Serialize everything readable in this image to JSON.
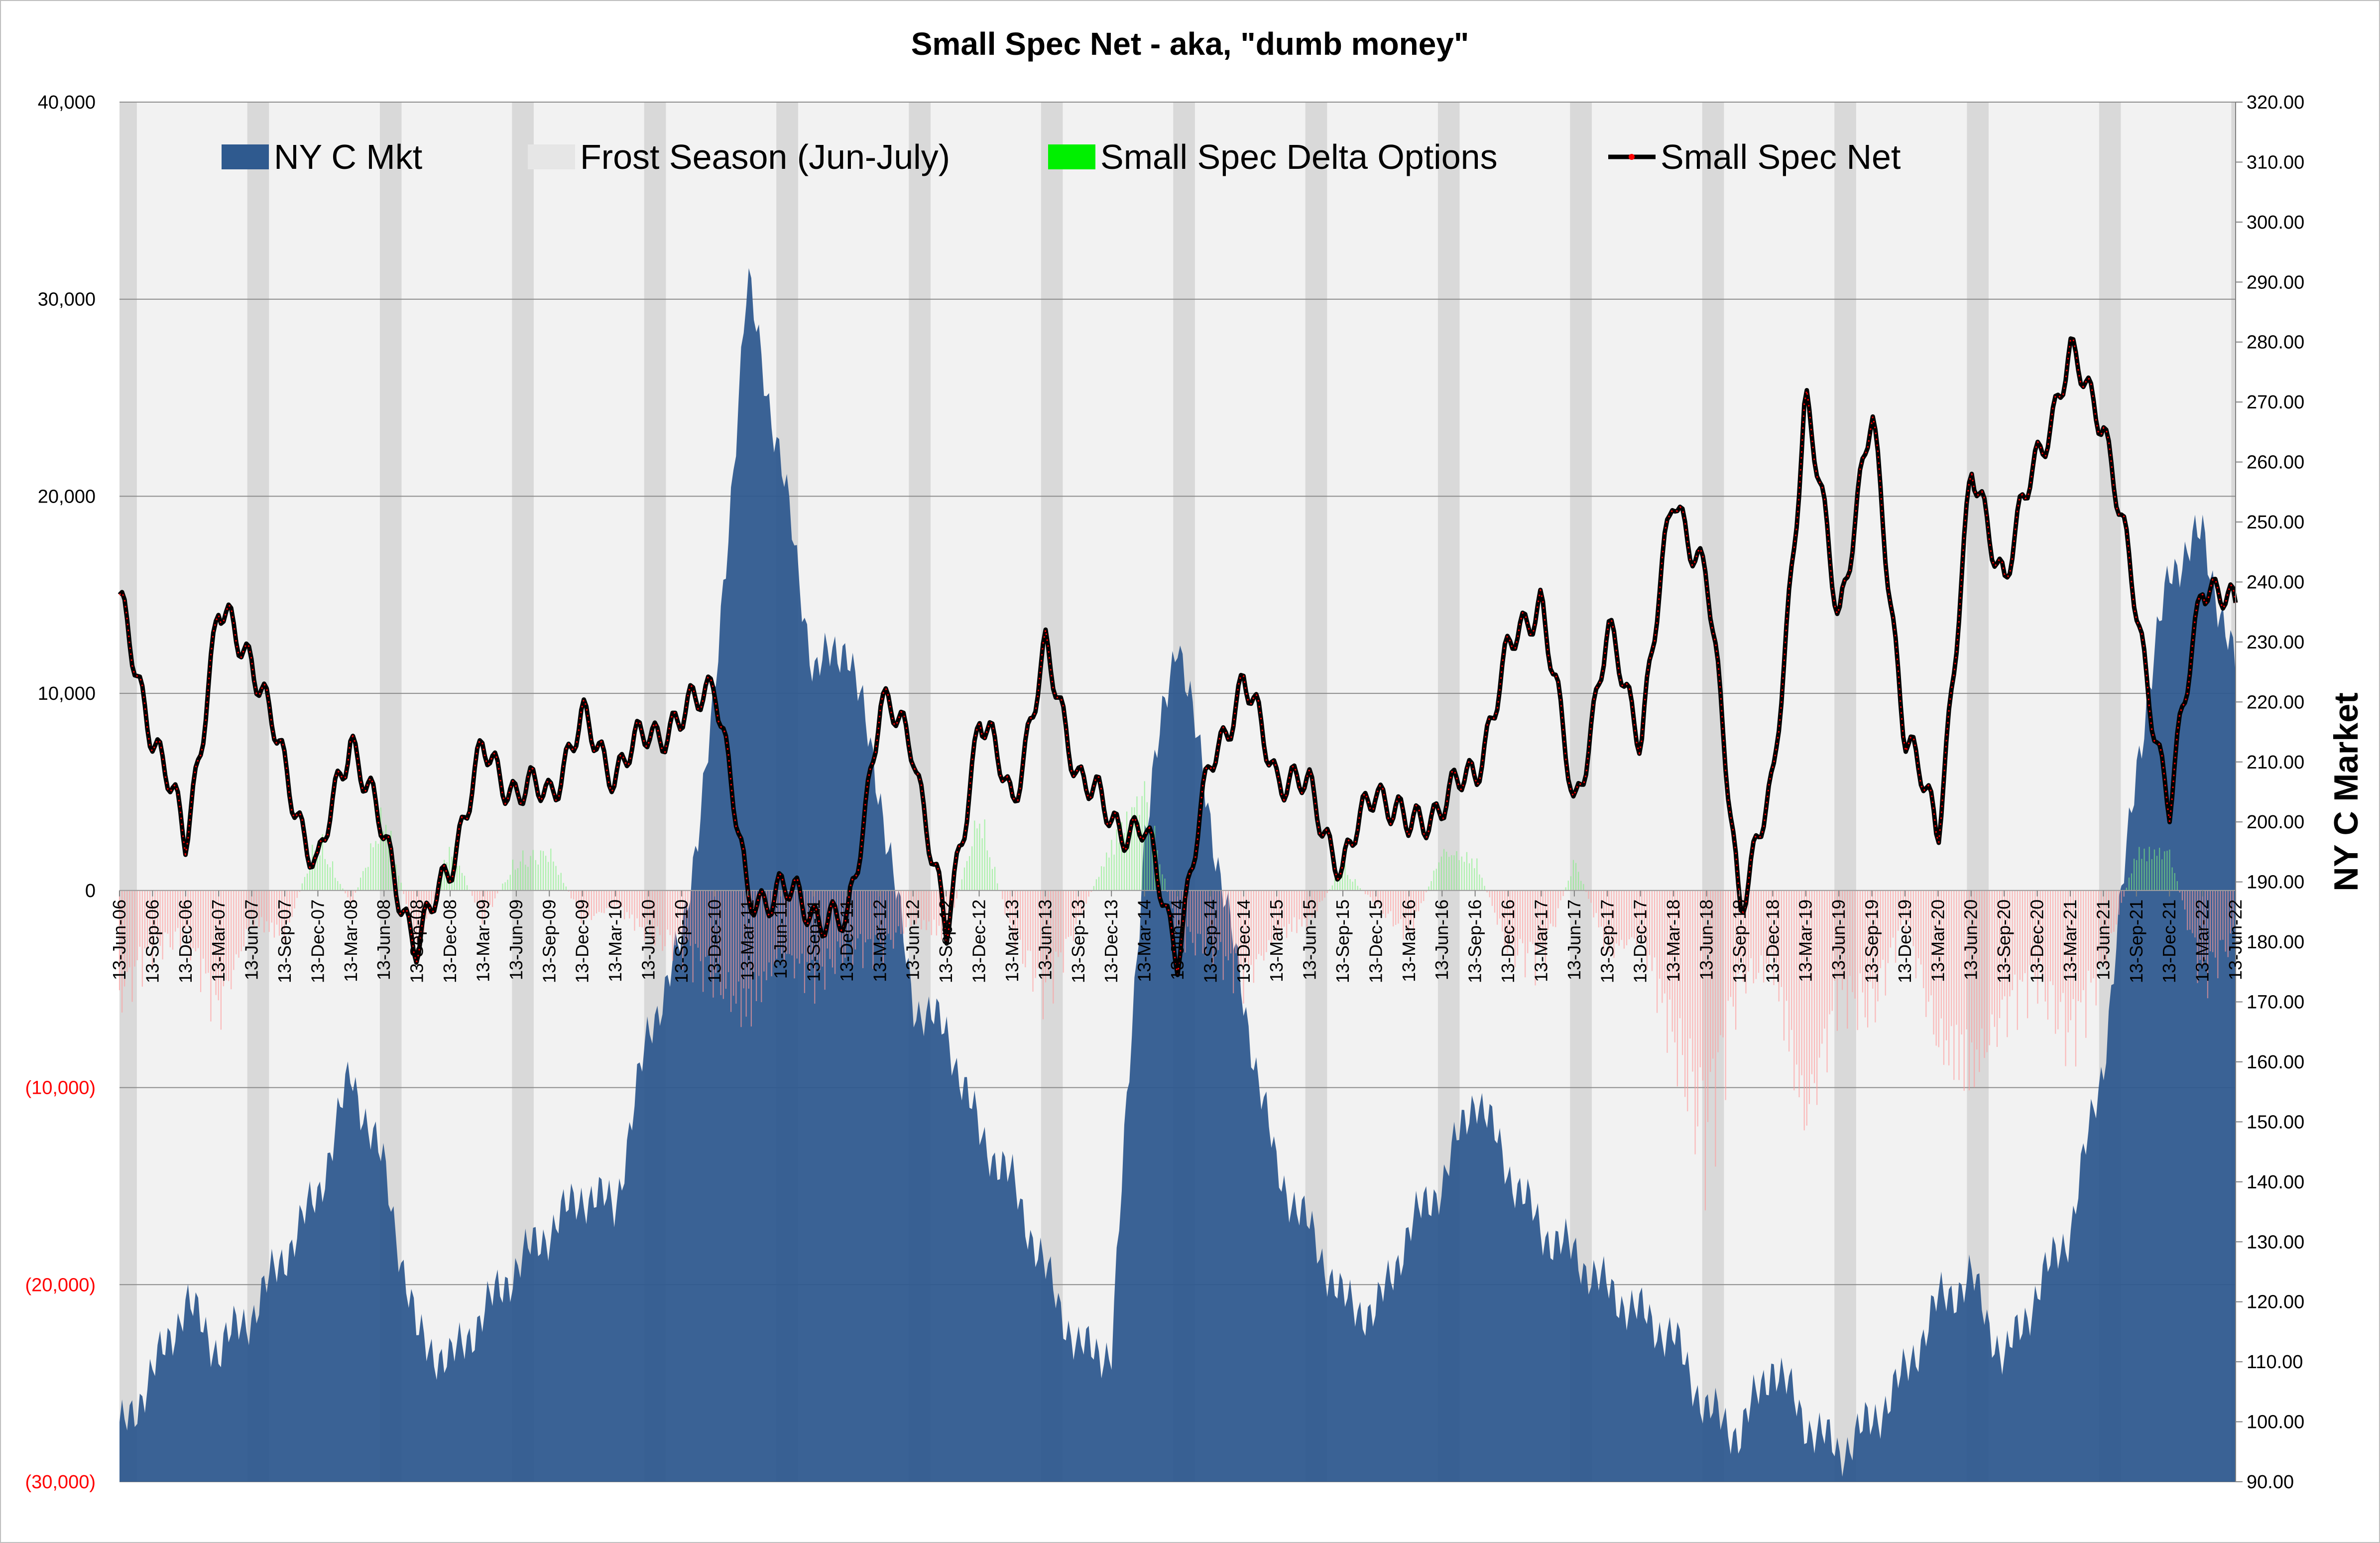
{
  "chart_data": {
    "type": "area",
    "title": "Small Spec Net - aka, \"dumb money\"",
    "y2label": "NY C Market",
    "legend": {
      "placement": "top",
      "entries": [
        {
          "name": "NY C Mkt",
          "swatch": "area",
          "color": "#2F5A8F"
        },
        {
          "name": "Frost Season (Jun-July)",
          "swatch": "area",
          "color": "#E6E6E6"
        },
        {
          "name": "Small Spec Delta Options",
          "swatch": "area",
          "color": "#00F000"
        },
        {
          "name": "Small Spec Net",
          "swatch": "line",
          "color": "#000000",
          "marker": "#FF0000"
        }
      ]
    },
    "left_axis": {
      "ylim": [
        -30000,
        40000
      ],
      "ticks": [
        40000,
        30000,
        20000,
        10000,
        0,
        -10000,
        -20000,
        -30000
      ],
      "tick_labels": [
        "40,000",
        "30,000",
        "20,000",
        "10,000",
        "0",
        "(10,000)",
        "(20,000)",
        "(30,000)"
      ],
      "negative_color": "#FF0000"
    },
    "right_axis": {
      "ylim": [
        90,
        320
      ],
      "ticks": [
        320,
        310,
        300,
        290,
        280,
        270,
        260,
        250,
        240,
        230,
        220,
        210,
        200,
        190,
        180,
        170,
        160,
        150,
        140,
        130,
        120,
        110,
        100,
        90
      ],
      "tick_labels": [
        "320.00",
        "310.00",
        "300.00",
        "290.00",
        "280.00",
        "270.00",
        "260.00",
        "250.00",
        "240.00",
        "230.00",
        "220.00",
        "210.00",
        "200.00",
        "190.00",
        "180.00",
        "170.00",
        "160.00",
        "150.00",
        "140.00",
        "130.00",
        "120.00",
        "110.00",
        "100.00",
        "90.00"
      ]
    },
    "x_axis": {
      "start": "2006-06-13",
      "end": "2022-06-13",
      "tick_labels": [
        "13-Jun-06",
        "13-Sep-06",
        "13-Dec-06",
        "13-Mar-07",
        "13-Jun-07",
        "13-Sep-07",
        "13-Dec-07",
        "13-Mar-08",
        "13-Jun-08",
        "13-Sep-08",
        "13-Dec-08",
        "13-Mar-09",
        "13-Jun-09",
        "13-Sep-09",
        "13-Dec-09",
        "13-Mar-10",
        "13-Jun-10",
        "13-Sep-10",
        "13-Dec-10",
        "13-Mar-11",
        "13-Jun-11",
        "13-Sep-11",
        "13-Dec-11",
        "13-Mar-12",
        "13-Jun-12",
        "13-Sep-12",
        "13-Dec-12",
        "13-Mar-13",
        "13-Jun-13",
        "13-Sep-13",
        "13-Dec-13",
        "13-Mar-14",
        "13-Jun-14",
        "13-Sep-14",
        "13-Dec-14",
        "13-Mar-15",
        "13-Jun-15",
        "13-Sep-15",
        "13-Dec-15",
        "13-Mar-16",
        "13-Jun-16",
        "13-Sep-16",
        "13-Dec-16",
        "13-Mar-17",
        "13-Jun-17",
        "13-Sep-17",
        "13-Dec-17",
        "13-Mar-18",
        "13-Jun-18",
        "13-Sep-18",
        "13-Dec-18",
        "13-Mar-19",
        "13-Jun-19",
        "13-Sep-19",
        "13-Dec-19",
        "13-Mar-20",
        "13-Jun-20",
        "13-Sep-20",
        "13-Dec-20",
        "13-Mar-21",
        "13-Jun-21",
        "13-Sep-21",
        "13-Dec-21",
        "13-Mar-22",
        "13-Jun-22"
      ]
    },
    "grid": true,
    "series": [
      {
        "name": "NY C Mkt",
        "axis": "right",
        "color": "#2F5A8F",
        "x": [
          "2006-06-13",
          "2006-09-13",
          "2006-12-13",
          "2007-03-13",
          "2007-06-13",
          "2007-09-13",
          "2007-12-13",
          "2008-03-13",
          "2008-06-13",
          "2008-09-13",
          "2008-12-13",
          "2009-03-13",
          "2009-06-13",
          "2009-09-13",
          "2009-12-13",
          "2010-03-13",
          "2010-06-13",
          "2010-09-13",
          "2010-12-13",
          "2011-03-13",
          "2011-06-13",
          "2011-09-13",
          "2011-12-13",
          "2012-03-13",
          "2012-06-13",
          "2012-09-13",
          "2012-12-13",
          "2013-03-13",
          "2013-06-13",
          "2013-09-13",
          "2013-12-13",
          "2014-03-13",
          "2014-06-13",
          "2014-09-13",
          "2014-12-13",
          "2015-03-13",
          "2015-06-13",
          "2015-09-13",
          "2015-12-13",
          "2016-03-13",
          "2016-06-13",
          "2016-09-13",
          "2016-12-13",
          "2017-03-13",
          "2017-06-13",
          "2017-09-13",
          "2017-12-13",
          "2018-03-13",
          "2018-06-13",
          "2018-09-13",
          "2018-12-13",
          "2019-03-13",
          "2019-06-13",
          "2019-09-13",
          "2019-12-13",
          "2020-03-13",
          "2020-06-13",
          "2020-09-13",
          "2020-12-13",
          "2021-03-13",
          "2021-06-13",
          "2021-09-13",
          "2021-12-13",
          "2022-03-13",
          "2022-06-13"
        ],
        "values": [
          98,
          108,
          120,
          112,
          118,
          128,
          138,
          158,
          142,
          114,
          110,
          118,
          126,
          132,
          138,
          136,
          165,
          180,
          220,
          290,
          260,
          225,
          230,
          205,
          170,
          165,
          148,
          140,
          125,
          112,
          112,
          198,
          232,
          200,
          170,
          142,
          132,
          120,
          118,
          132,
          140,
          155,
          142,
          132,
          128,
          122,
          118,
          114,
          102,
          98,
          110,
          100,
          95,
          100,
          108,
          120,
          124,
          110,
          122,
          132,
          160,
          210,
          242,
          248,
          225
        ]
      },
      {
        "name": "Small Spec Net",
        "axis": "left",
        "color": "#000000",
        "marker_color": "#FF0000",
        "x": [
          "2006-06-13",
          "2006-09-13",
          "2006-12-13",
          "2007-03-13",
          "2007-06-13",
          "2007-09-13",
          "2007-12-13",
          "2008-03-13",
          "2008-06-13",
          "2008-09-13",
          "2008-12-13",
          "2009-03-13",
          "2009-06-13",
          "2009-09-13",
          "2009-12-13",
          "2010-03-13",
          "2010-06-13",
          "2010-09-13",
          "2010-12-13",
          "2011-03-13",
          "2011-06-13",
          "2011-09-13",
          "2011-12-13",
          "2012-03-13",
          "2012-06-13",
          "2012-09-13",
          "2012-12-13",
          "2013-03-13",
          "2013-06-13",
          "2013-09-13",
          "2013-12-13",
          "2014-03-13",
          "2014-06-13",
          "2014-09-13",
          "2014-12-13",
          "2015-03-13",
          "2015-06-13",
          "2015-09-13",
          "2015-12-13",
          "2016-03-13",
          "2016-06-13",
          "2016-09-13",
          "2016-12-13",
          "2017-03-13",
          "2017-06-13",
          "2017-09-13",
          "2017-12-13",
          "2018-03-13",
          "2018-06-13",
          "2018-09-13",
          "2018-12-13",
          "2019-03-13",
          "2019-06-13",
          "2019-09-13",
          "2019-12-13",
          "2020-03-13",
          "2020-06-13",
          "2020-09-13",
          "2020-12-13",
          "2021-03-13",
          "2021-06-13",
          "2021-09-13",
          "2021-12-13",
          "2022-03-13",
          "2022-06-13"
        ],
        "values": [
          14500,
          8000,
          2500,
          14000,
          12000,
          6000,
          1000,
          8000,
          2500,
          -3000,
          1500,
          7000,
          5000,
          5000,
          8500,
          6000,
          8000,
          8500,
          11000,
          -500,
          0,
          -1000,
          -2000,
          9500,
          7500,
          -2500,
          9000,
          4500,
          12000,
          6000,
          3500,
          3000,
          -3000,
          6500,
          10500,
          6000,
          5000,
          1000,
          5500,
          3000,
          4500,
          6000,
          12000,
          15000,
          4000,
          13000,
          8000,
          20000,
          16000,
          -500,
          5000,
          25000,
          14000,
          24000,
          8000,
          3000,
          21000,
          16000,
          22000,
          27000,
          24000,
          14000,
          4000,
          16000,
          14000
        ]
      },
      {
        "name": "Small Spec Delta Options",
        "axis": "left",
        "color": "#00F000",
        "note": "positive portion shown in green, negative portion shown in light red",
        "x": [
          "2006-06-13",
          "2006-09-13",
          "2006-12-13",
          "2007-03-13",
          "2007-06-13",
          "2007-09-13",
          "2007-12-13",
          "2008-03-13",
          "2008-06-13",
          "2008-09-13",
          "2008-12-13",
          "2009-03-13",
          "2009-06-13",
          "2009-09-13",
          "2009-12-13",
          "2010-03-13",
          "2010-06-13",
          "2010-09-13",
          "2010-12-13",
          "2011-03-13",
          "2011-06-13",
          "2011-09-13",
          "2011-12-13",
          "2012-03-13",
          "2012-06-13",
          "2012-09-13",
          "2012-12-13",
          "2013-03-13",
          "2013-06-13",
          "2013-09-13",
          "2013-12-13",
          "2014-03-13",
          "2014-06-13",
          "2014-09-13",
          "2014-12-13",
          "2015-03-13",
          "2015-06-13",
          "2015-09-13",
          "2015-12-13",
          "2016-03-13",
          "2016-06-13",
          "2016-09-13",
          "2016-12-13",
          "2017-03-13",
          "2017-06-13",
          "2017-09-13",
          "2017-12-13",
          "2018-03-13",
          "2018-06-13",
          "2018-09-13",
          "2018-12-13",
          "2019-03-13",
          "2019-06-13",
          "2019-09-13",
          "2019-12-13",
          "2020-03-13",
          "2020-06-13",
          "2020-09-13",
          "2020-12-13",
          "2021-03-13",
          "2021-06-13",
          "2021-09-13",
          "2021-12-13",
          "2022-03-13",
          "2022-06-13"
        ],
        "values": [
          -7000,
          -4000,
          -3000,
          -8000,
          -2000,
          -3000,
          3500,
          -1000,
          5000,
          -4000,
          3000,
          -2000,
          2000,
          2500,
          -2000,
          -1000,
          -3000,
          -4000,
          -6000,
          -8000,
          -4000,
          -6000,
          -4000,
          -4000,
          -2000,
          -3000,
          5000,
          -3000,
          -7000,
          -2000,
          3000,
          6500,
          -3000,
          -4000,
          -6000,
          -3000,
          -2000,
          1500,
          -1000,
          -3000,
          2500,
          2000,
          -4000,
          -5000,
          2000,
          -4000,
          -3000,
          -10000,
          -17000,
          -6000,
          -5000,
          -15000,
          -7000,
          -8000,
          -2000,
          -10000,
          -12000,
          -8000,
          -6000,
          -10000,
          -5000,
          2500,
          2500,
          -6000,
          -3000
        ]
      }
    ],
    "frost_seasons": [
      2006,
      2007,
      2008,
      2009,
      2010,
      2011,
      2012,
      2013,
      2014,
      2015,
      2016,
      2017,
      2018,
      2019,
      2020,
      2021,
      2022
    ]
  }
}
